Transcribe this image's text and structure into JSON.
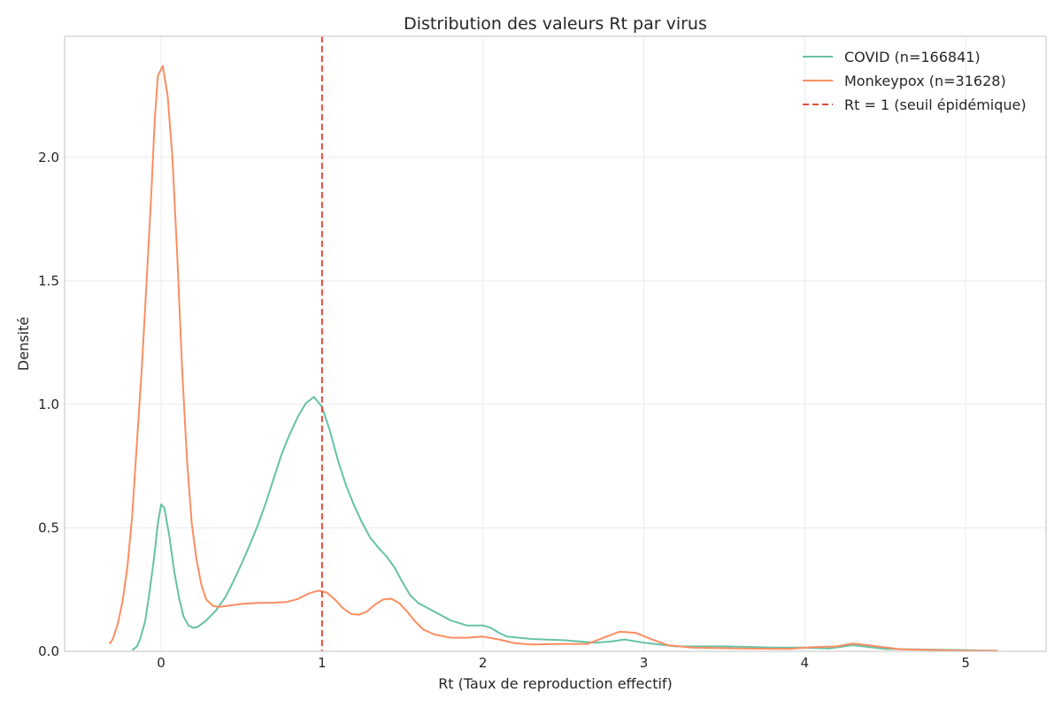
{
  "chart_data": {
    "type": "line",
    "title": "Distribution des valeurs Rt par virus",
    "xlabel": "Rt (Taux de reproduction effectif)",
    "ylabel": "Densité",
    "xlim": [
      -0.6,
      5.5
    ],
    "ylim": [
      0,
      2.49
    ],
    "xticks": [
      0,
      1,
      2,
      3,
      4,
      5
    ],
    "xtick_labels": [
      "0",
      "1",
      "2",
      "3",
      "4",
      "5"
    ],
    "yticks": [
      0.0,
      0.5,
      1.0,
      1.5,
      2.0
    ],
    "ytick_labels": [
      "0.0",
      "0.5",
      "1.0",
      "1.5",
      "2.0"
    ],
    "grid": true,
    "legend_position": "top-right",
    "series": [
      {
        "name": "COVID (n=166841)",
        "color": "#66c2a5",
        "style": "solid",
        "points": [
          [
            -0.18,
            0.005
          ],
          [
            -0.15,
            0.02
          ],
          [
            -0.13,
            0.05
          ],
          [
            -0.1,
            0.12
          ],
          [
            -0.07,
            0.25
          ],
          [
            -0.04,
            0.4
          ],
          [
            -0.02,
            0.52
          ],
          [
            0.0,
            0.595
          ],
          [
            0.02,
            0.58
          ],
          [
            0.05,
            0.47
          ],
          [
            0.08,
            0.33
          ],
          [
            0.11,
            0.22
          ],
          [
            0.14,
            0.14
          ],
          [
            0.17,
            0.105
          ],
          [
            0.2,
            0.095
          ],
          [
            0.23,
            0.1
          ],
          [
            0.28,
            0.125
          ],
          [
            0.34,
            0.165
          ],
          [
            0.4,
            0.22
          ],
          [
            0.45,
            0.285
          ],
          [
            0.5,
            0.355
          ],
          [
            0.55,
            0.43
          ],
          [
            0.6,
            0.51
          ],
          [
            0.65,
            0.6
          ],
          [
            0.7,
            0.7
          ],
          [
            0.75,
            0.8
          ],
          [
            0.8,
            0.88
          ],
          [
            0.85,
            0.95
          ],
          [
            0.9,
            1.005
          ],
          [
            0.95,
            1.03
          ],
          [
            1.0,
            0.99
          ],
          [
            1.05,
            0.89
          ],
          [
            1.1,
            0.77
          ],
          [
            1.15,
            0.67
          ],
          [
            1.2,
            0.59
          ],
          [
            1.25,
            0.52
          ],
          [
            1.3,
            0.46
          ],
          [
            1.35,
            0.42
          ],
          [
            1.4,
            0.385
          ],
          [
            1.45,
            0.34
          ],
          [
            1.5,
            0.28
          ],
          [
            1.55,
            0.225
          ],
          [
            1.6,
            0.195
          ],
          [
            1.7,
            0.16
          ],
          [
            1.8,
            0.125
          ],
          [
            1.9,
            0.105
          ],
          [
            2.0,
            0.105
          ],
          [
            2.05,
            0.095
          ],
          [
            2.1,
            0.075
          ],
          [
            2.15,
            0.06
          ],
          [
            2.3,
            0.05
          ],
          [
            2.5,
            0.045
          ],
          [
            2.7,
            0.035
          ],
          [
            2.8,
            0.04
          ],
          [
            2.88,
            0.048
          ],
          [
            3.0,
            0.035
          ],
          [
            3.2,
            0.02
          ],
          [
            3.5,
            0.02
          ],
          [
            3.8,
            0.015
          ],
          [
            4.0,
            0.015
          ],
          [
            4.15,
            0.012
          ],
          [
            4.3,
            0.025
          ],
          [
            4.5,
            0.01
          ],
          [
            5.0,
            0.005
          ],
          [
            5.2,
            0.002
          ]
        ]
      },
      {
        "name": "Monkeypox (n=31628)",
        "color": "#fc8d62",
        "style": "solid",
        "points": [
          [
            -0.32,
            0.03
          ],
          [
            -0.3,
            0.05
          ],
          [
            -0.27,
            0.11
          ],
          [
            -0.24,
            0.2
          ],
          [
            -0.21,
            0.34
          ],
          [
            -0.18,
            0.55
          ],
          [
            -0.15,
            0.85
          ],
          [
            -0.12,
            1.15
          ],
          [
            -0.09,
            1.5
          ],
          [
            -0.06,
            1.87
          ],
          [
            -0.04,
            2.15
          ],
          [
            -0.02,
            2.33
          ],
          [
            0.01,
            2.37
          ],
          [
            0.04,
            2.25
          ],
          [
            0.07,
            2.0
          ],
          [
            0.1,
            1.6
          ],
          [
            0.13,
            1.15
          ],
          [
            0.16,
            0.78
          ],
          [
            0.19,
            0.52
          ],
          [
            0.22,
            0.37
          ],
          [
            0.25,
            0.27
          ],
          [
            0.28,
            0.21
          ],
          [
            0.32,
            0.185
          ],
          [
            0.36,
            0.18
          ],
          [
            0.42,
            0.185
          ],
          [
            0.5,
            0.192
          ],
          [
            0.6,
            0.196
          ],
          [
            0.7,
            0.197
          ],
          [
            0.78,
            0.2
          ],
          [
            0.85,
            0.212
          ],
          [
            0.92,
            0.235
          ],
          [
            0.98,
            0.246
          ],
          [
            1.03,
            0.238
          ],
          [
            1.08,
            0.21
          ],
          [
            1.13,
            0.175
          ],
          [
            1.18,
            0.152
          ],
          [
            1.23,
            0.148
          ],
          [
            1.28,
            0.162
          ],
          [
            1.33,
            0.19
          ],
          [
            1.38,
            0.21
          ],
          [
            1.43,
            0.213
          ],
          [
            1.48,
            0.195
          ],
          [
            1.53,
            0.16
          ],
          [
            1.58,
            0.12
          ],
          [
            1.63,
            0.088
          ],
          [
            1.7,
            0.068
          ],
          [
            1.8,
            0.055
          ],
          [
            1.9,
            0.055
          ],
          [
            2.0,
            0.06
          ],
          [
            2.1,
            0.048
          ],
          [
            2.2,
            0.033
          ],
          [
            2.3,
            0.028
          ],
          [
            2.5,
            0.03
          ],
          [
            2.65,
            0.03
          ],
          [
            2.75,
            0.055
          ],
          [
            2.85,
            0.08
          ],
          [
            2.95,
            0.075
          ],
          [
            3.05,
            0.048
          ],
          [
            3.15,
            0.025
          ],
          [
            3.3,
            0.015
          ],
          [
            3.6,
            0.012
          ],
          [
            3.9,
            0.01
          ],
          [
            4.05,
            0.017
          ],
          [
            4.2,
            0.02
          ],
          [
            4.3,
            0.032
          ],
          [
            4.45,
            0.02
          ],
          [
            4.6,
            0.008
          ],
          [
            5.0,
            0.003
          ],
          [
            5.2,
            0.002
          ]
        ]
      }
    ],
    "reference_line": {
      "name": "Rt = 1 (seuil épidémique)",
      "x": 1,
      "color": "#e74c3c",
      "style": "dashed"
    }
  }
}
